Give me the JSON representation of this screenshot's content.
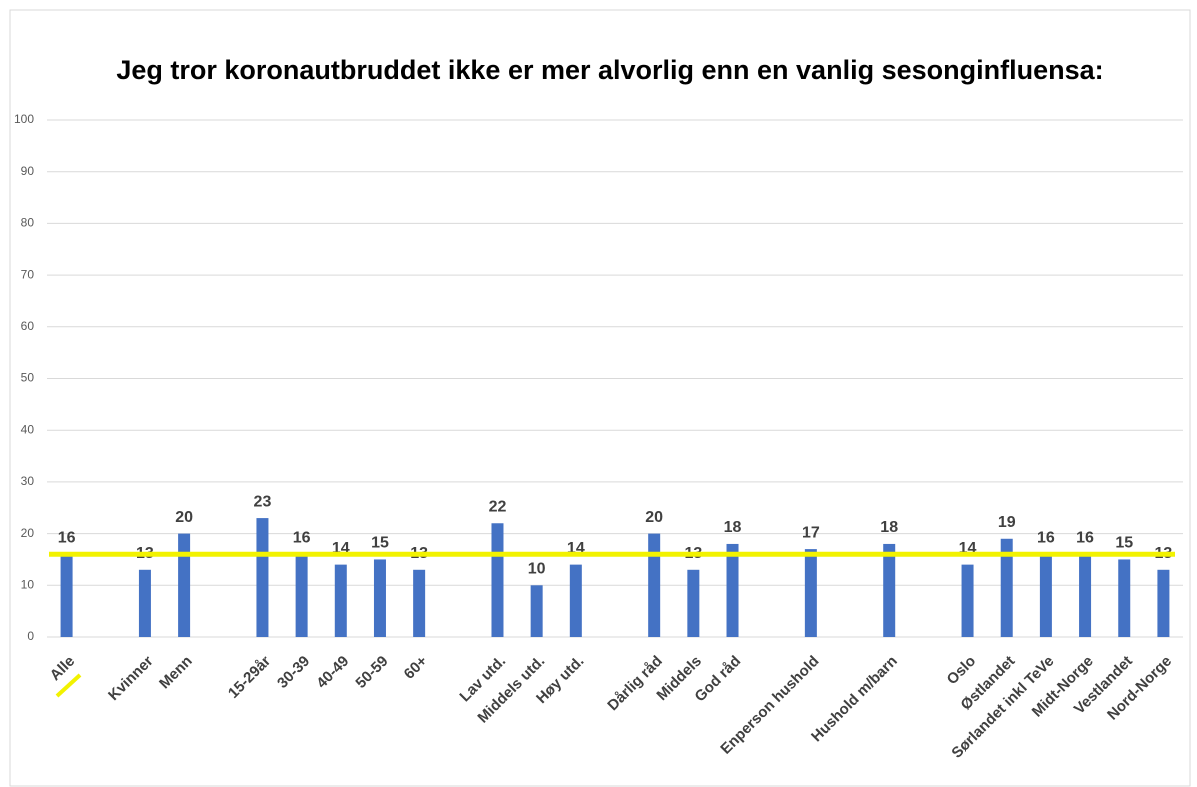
{
  "chart_data": {
    "type": "bar",
    "title": "Jeg tror koronautbruddet ikke er mer alvorlig enn en vanlig sesonginfluensa:",
    "categories": [
      "Alle",
      null,
      "Kvinner",
      "Menn",
      null,
      "15-29år",
      "30-39",
      "40-49",
      "50-59",
      "60+",
      null,
      "Lav utd.",
      "Middels utd.",
      "Høy utd.",
      null,
      "Dårlig råd",
      "Middels",
      "God råd",
      null,
      "Enperson hushold",
      null,
      "Hushold m/barn",
      null,
      "Oslo",
      "Østlandet",
      "Sørlandet inkl TeVe",
      "Midt-Norge",
      "Vestlandet",
      "Nord-Norge"
    ],
    "values": [
      16,
      null,
      13,
      20,
      null,
      23,
      16,
      14,
      15,
      13,
      null,
      22,
      10,
      14,
      null,
      20,
      13,
      18,
      null,
      17,
      null,
      18,
      null,
      14,
      19,
      16,
      16,
      15,
      13
    ],
    "color": "#4472c4",
    "ylim": [
      0,
      100
    ],
    "yticks": [
      0,
      10,
      20,
      30,
      40,
      50,
      60,
      70,
      80,
      90,
      100
    ],
    "grid": true,
    "reference_line": {
      "value": 16,
      "color": "#f2f200"
    }
  }
}
